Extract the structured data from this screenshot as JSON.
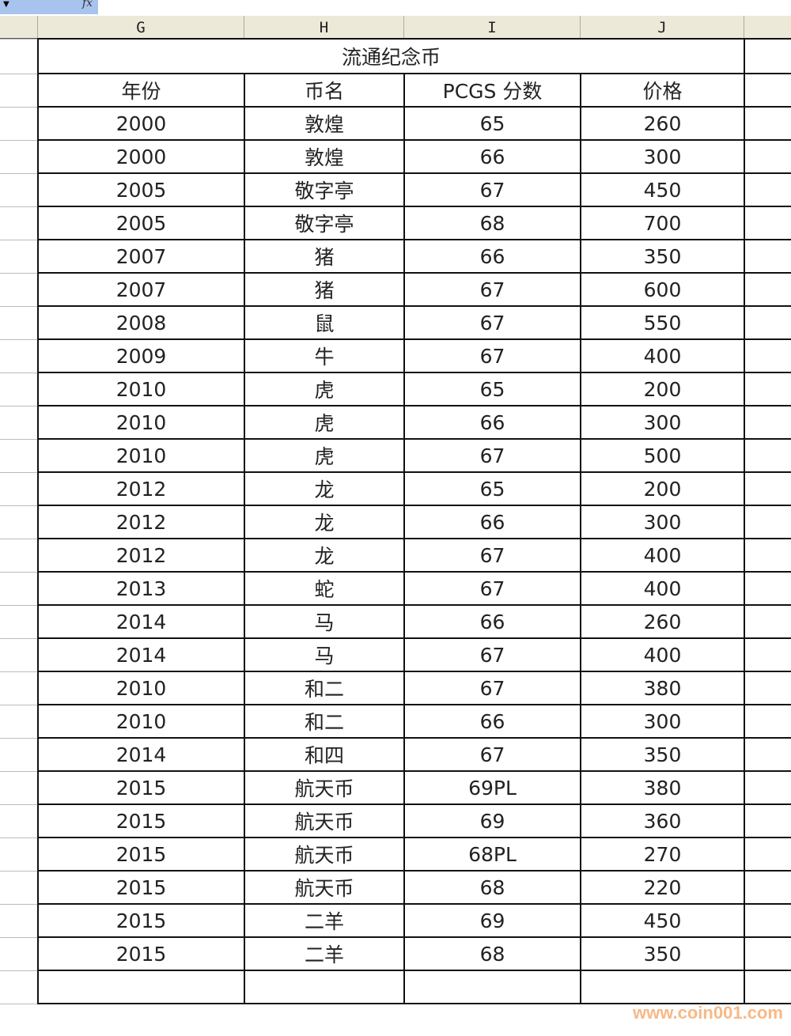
{
  "formula_bar": {
    "fx_label": "fx",
    "name_box_arrow": "▼"
  },
  "columns": [
    "G",
    "H",
    "I",
    "J"
  ],
  "title": "流通纪念币",
  "headers": [
    "年份",
    "币名",
    "PCGS 分数",
    "价格"
  ],
  "rows": [
    [
      "2000",
      "敦煌",
      "65",
      "260"
    ],
    [
      "2000",
      "敦煌",
      "66",
      "300"
    ],
    [
      "2005",
      "敬字亭",
      "67",
      "450"
    ],
    [
      "2005",
      "敬字亭",
      "68",
      "700"
    ],
    [
      "2007",
      "猪",
      "66",
      "350"
    ],
    [
      "2007",
      "猪",
      "67",
      "600"
    ],
    [
      "2008",
      "鼠",
      "67",
      "550"
    ],
    [
      "2009",
      "牛",
      "67",
      "400"
    ],
    [
      "2010",
      "虎",
      "65",
      "200"
    ],
    [
      "2010",
      "虎",
      "66",
      "300"
    ],
    [
      "2010",
      "虎",
      "67",
      "500"
    ],
    [
      "2012",
      "龙",
      "65",
      "200"
    ],
    [
      "2012",
      "龙",
      "66",
      "300"
    ],
    [
      "2012",
      "龙",
      "67",
      "400"
    ],
    [
      "2013",
      "蛇",
      "67",
      "400"
    ],
    [
      "2014",
      "马",
      "66",
      "260"
    ],
    [
      "2014",
      "马",
      "67",
      "400"
    ],
    [
      "2010",
      "和二",
      "67",
      "380"
    ],
    [
      "2010",
      "和二",
      "66",
      "300"
    ],
    [
      "2014",
      "和四",
      "67",
      "350"
    ],
    [
      "2015",
      "航天币",
      "69PL",
      "380"
    ],
    [
      "2015",
      "航天币",
      "69",
      "360"
    ],
    [
      "2015",
      "航天币",
      "68PL",
      "270"
    ],
    [
      "2015",
      "航天币",
      "68",
      "220"
    ],
    [
      "2015",
      "二羊",
      "69",
      "450"
    ],
    [
      "2015",
      "二羊",
      "68",
      "350"
    ]
  ],
  "watermark": "www.coin001.com"
}
